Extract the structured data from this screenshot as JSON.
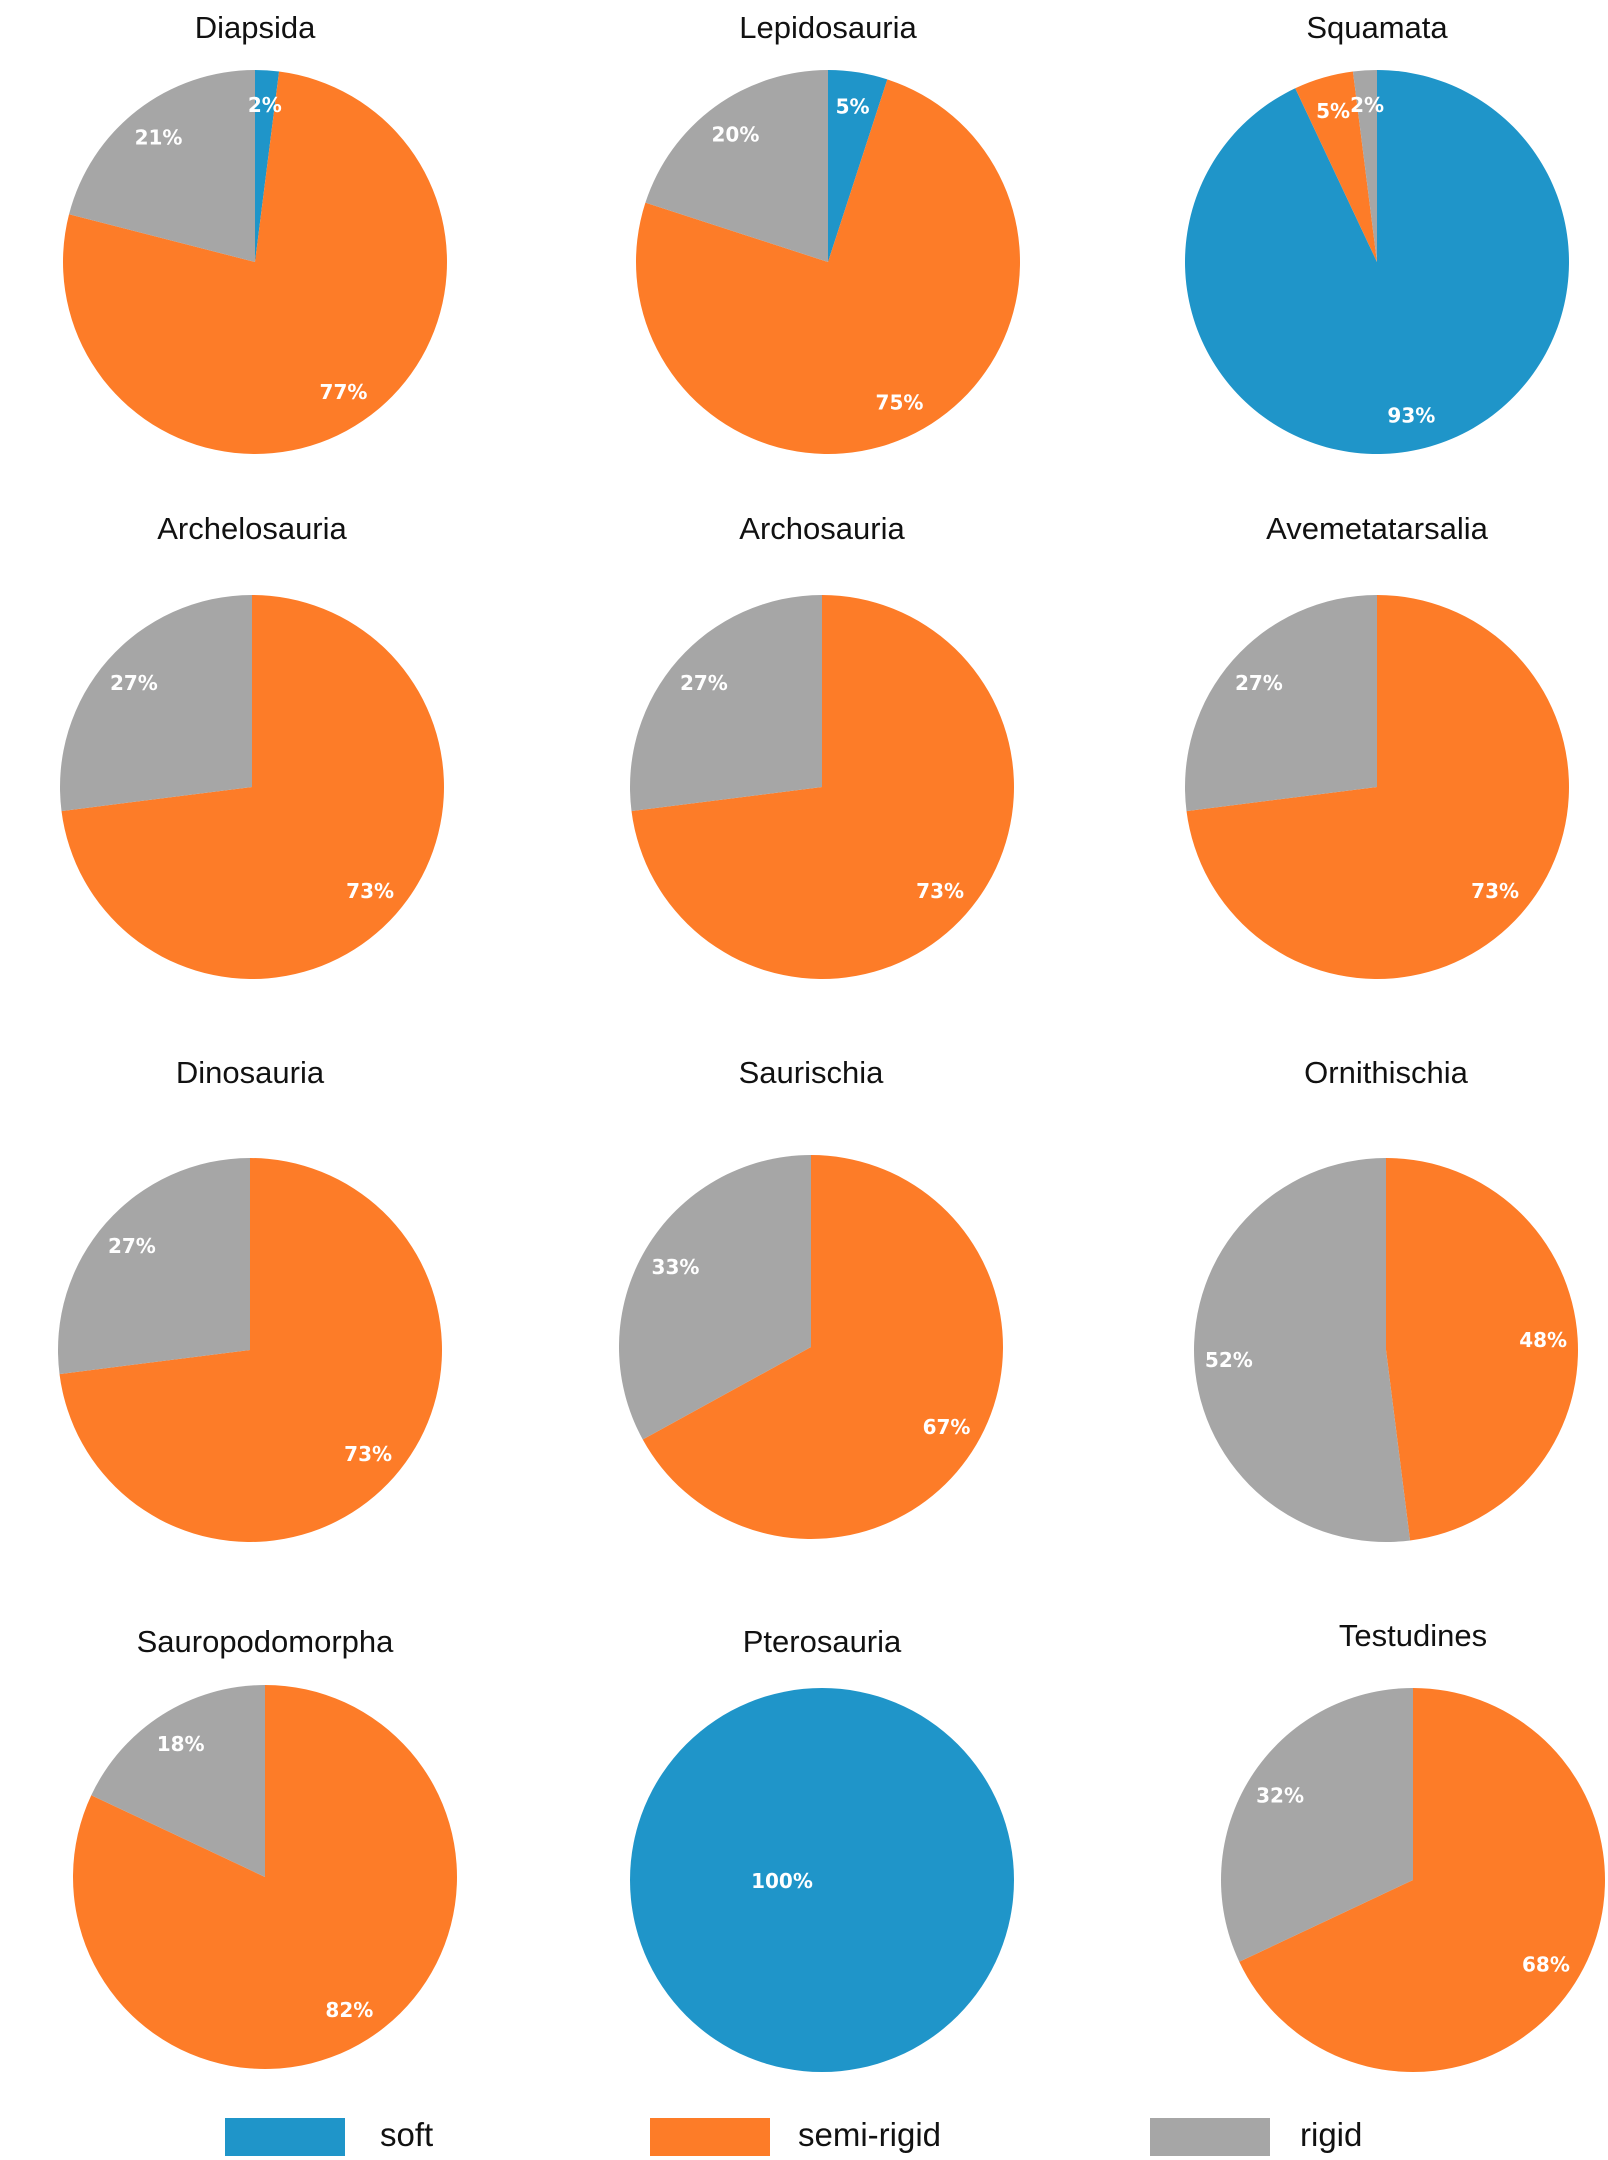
{
  "chart_data": {
    "type": "pie",
    "categories": [
      "soft",
      "semi-rigid",
      "rigid"
    ],
    "colors": {
      "soft": "#1f95c9",
      "semi-rigid": "#fd7c28",
      "rigid": "#a6a6a6"
    },
    "charts": [
      {
        "title": "Diapsida",
        "values": {
          "soft": 2,
          "semi-rigid": 77,
          "rigid": 21
        },
        "labels": {
          "soft": "2%",
          "semi-rigid": "77%",
          "rigid": "21%"
        }
      },
      {
        "title": "Lepidosauria",
        "values": {
          "soft": 5,
          "semi-rigid": 75,
          "rigid": 20
        },
        "labels": {
          "soft": "5%",
          "semi-rigid": "75%",
          "rigid": "20%"
        }
      },
      {
        "title": "Squamata",
        "values": {
          "soft": 93,
          "semi-rigid": 5,
          "rigid": 2
        },
        "labels": {
          "soft": "93%",
          "semi-rigid": "5%",
          "rigid": "2%"
        }
      },
      {
        "title": "Archelosauria",
        "values": {
          "soft": 0,
          "semi-rigid": 73,
          "rigid": 27
        },
        "labels": {
          "soft": "",
          "semi-rigid": "73%",
          "rigid": "27%"
        }
      },
      {
        "title": "Archosauria",
        "values": {
          "soft": 0,
          "semi-rigid": 73,
          "rigid": 27
        },
        "labels": {
          "soft": "",
          "semi-rigid": "73%",
          "rigid": "27%"
        }
      },
      {
        "title": "Avemetatarsalia",
        "values": {
          "soft": 0,
          "semi-rigid": 73,
          "rigid": 27
        },
        "labels": {
          "soft": "",
          "semi-rigid": "73%",
          "rigid": "27%"
        }
      },
      {
        "title": "Dinosauria",
        "values": {
          "soft": 0,
          "semi-rigid": 73,
          "rigid": 27
        },
        "labels": {
          "soft": "",
          "semi-rigid": "73%",
          "rigid": "27%"
        }
      },
      {
        "title": "Saurischia",
        "values": {
          "soft": 0,
          "semi-rigid": 67,
          "rigid": 33
        },
        "labels": {
          "soft": "",
          "semi-rigid": "67%",
          "rigid": "33%"
        }
      },
      {
        "title": "Ornithischia",
        "values": {
          "soft": 0,
          "semi-rigid": 48,
          "rigid": 52
        },
        "labels": {
          "soft": "",
          "semi-rigid": "48%",
          "rigid": "52%"
        }
      },
      {
        "title": "Sauropodomorpha",
        "values": {
          "soft": 0,
          "semi-rigid": 82,
          "rigid": 18
        },
        "labels": {
          "soft": "",
          "semi-rigid": "82%",
          "rigid": "18%"
        }
      },
      {
        "title": "Pterosauria",
        "values": {
          "soft": 100,
          "semi-rigid": 0,
          "rigid": 0
        },
        "labels": {
          "soft": "100%",
          "semi-rigid": "",
          "rigid": ""
        }
      },
      {
        "title": "Testudines",
        "values": {
          "soft": 0,
          "semi-rigid": 68,
          "rigid": 32
        },
        "labels": {
          "soft": "",
          "semi-rigid": "68%",
          "rigid": "32%"
        }
      }
    ],
    "legend": {
      "position": "bottom",
      "entries": [
        "soft",
        "semi-rigid",
        "rigid"
      ]
    }
  }
}
